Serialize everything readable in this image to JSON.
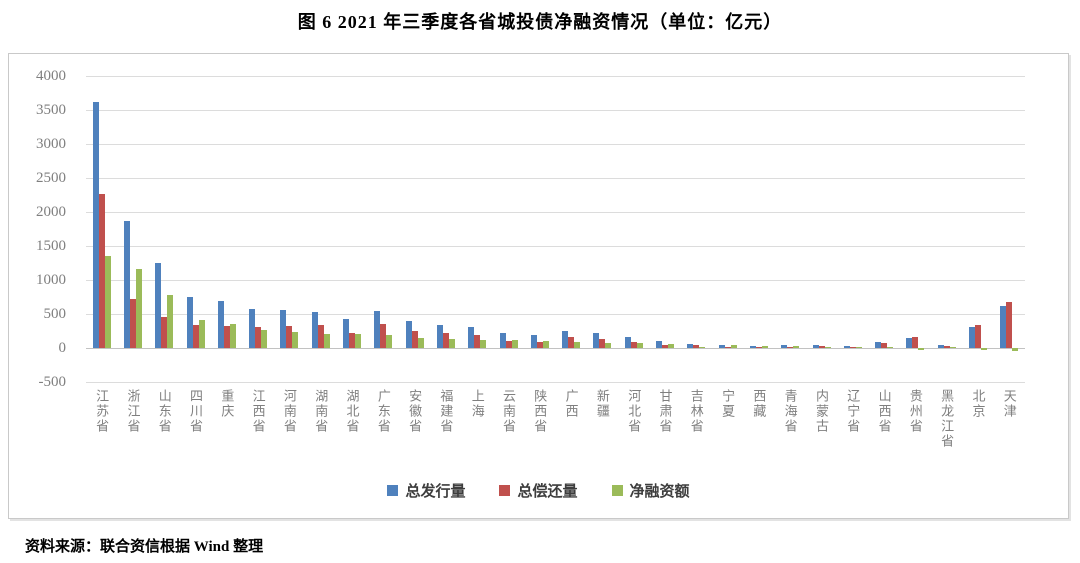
{
  "title": "图 6  2021 年三季度各省城投债净融资情况（单位：亿元）",
  "source": "资料来源：联合资信根据 Wind 整理",
  "chart_data": {
    "type": "bar",
    "title": "图 6  2021 年三季度各省城投债净融资情况（单位：亿元）",
    "unit": "亿元",
    "categories": [
      "江苏省",
      "浙江省",
      "山东省",
      "四川省",
      "重庆",
      "江西省",
      "河南省",
      "湖南省",
      "湖北省",
      "广东省",
      "安徽省",
      "福建省",
      "上海",
      "云南省",
      "陕西省",
      "广西",
      "新疆",
      "河北省",
      "甘肃省",
      "吉林省",
      "宁夏",
      "西藏",
      "青海省",
      "内蒙古",
      "辽宁省",
      "山西省",
      "贵州省",
      "黑龙江省",
      "北京",
      "天津"
    ],
    "series": [
      {
        "name": "总发行量",
        "color": "#4F81BD",
        "values": [
          3620,
          1875,
          1250,
          750,
          685,
          570,
          560,
          535,
          420,
          550,
          395,
          345,
          305,
          215,
          185,
          245,
          215,
          160,
          105,
          60,
          50,
          35,
          45,
          45,
          35,
          85,
          140,
          45,
          315,
          620
        ]
      },
      {
        "name": "总偿还量",
        "color": "#C0504D",
        "values": [
          2260,
          720,
          460,
          340,
          330,
          310,
          330,
          335,
          215,
          355,
          245,
          215,
          185,
          100,
          85,
          155,
          135,
          85,
          40,
          40,
          5,
          2,
          20,
          25,
          20,
          80,
          165,
          35,
          345,
          670
        ]
      },
      {
        "name": "净融资额",
        "color": "#9BBB59",
        "values": [
          1350,
          1155,
          780,
          410,
          355,
          260,
          230,
          200,
          205,
          195,
          150,
          130,
          120,
          115,
          100,
          90,
          80,
          75,
          65,
          20,
          45,
          33,
          25,
          20,
          15,
          5,
          -25,
          10,
          -30,
          -50
        ]
      }
    ],
    "ylim": [
      -500,
      4000
    ],
    "yticks": [
      4000,
      3500,
      3000,
      2500,
      2000,
      1500,
      1000,
      500,
      0,
      -500
    ],
    "grid": true,
    "legend_position": "bottom",
    "xlabel": "",
    "ylabel": ""
  }
}
